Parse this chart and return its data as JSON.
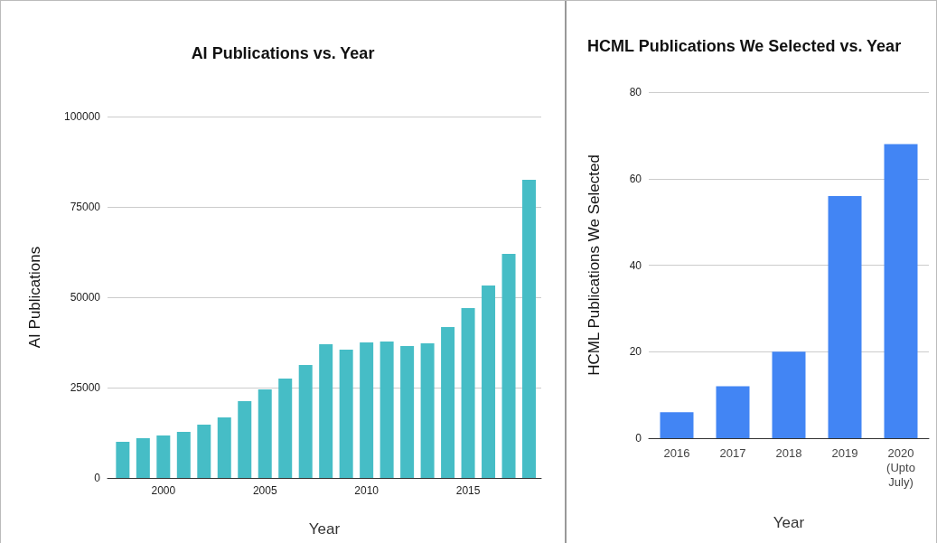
{
  "chart_data": [
    {
      "type": "bar",
      "title": "AI Publications vs. Year",
      "xlabel": "Year",
      "ylabel": "AI Publications",
      "x": [
        1998,
        1999,
        2000,
        2001,
        2002,
        2003,
        2004,
        2005,
        2006,
        2007,
        2008,
        2009,
        2010,
        2011,
        2012,
        2013,
        2014,
        2015,
        2016,
        2017,
        2018
      ],
      "values": [
        10000,
        11000,
        11750,
        12750,
        14750,
        16750,
        21250,
        24500,
        27500,
        31250,
        37000,
        35500,
        37500,
        37750,
        36500,
        37250,
        41750,
        47000,
        53250,
        62000,
        82500
      ],
      "color": "#46bdc6",
      "xlim": [
        1997.25,
        2018.6
      ],
      "xticks": [
        2000,
        2005,
        2010,
        2015
      ],
      "ylim": [
        0,
        100000
      ],
      "yticks": [
        0,
        25000,
        50000,
        75000,
        100000
      ],
      "grid": "y"
    },
    {
      "type": "bar",
      "title": "HCML Publications We Selected vs. Year",
      "xlabel": "Year",
      "ylabel": "HCML Publications We Selected",
      "categories": [
        "2016",
        "2017",
        "2018",
        "2019",
        "2020\n(Upto\nJuly)"
      ],
      "values": [
        6,
        12,
        20,
        56,
        68
      ],
      "color": "#4285f4",
      "ylim": [
        0,
        80
      ],
      "yticks": [
        0,
        20,
        40,
        60,
        80
      ],
      "grid": "y"
    }
  ]
}
